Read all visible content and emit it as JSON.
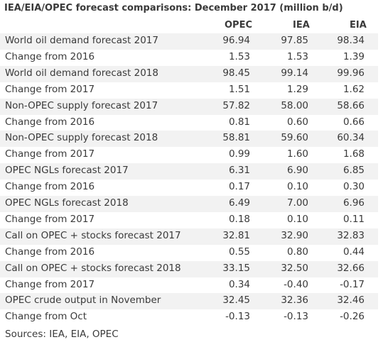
{
  "title": "IEA/EIA/OPEC forecast comparisons: December 2017 (million b/d)",
  "columns": [
    "OPEC",
    "IEA",
    "EIA"
  ],
  "rows": [
    {
      "label": "World oil demand forecast 2017",
      "values": [
        "96.94",
        "97.85",
        "98.34"
      ]
    },
    {
      "label": "Change from 2016",
      "values": [
        "1.53",
        "1.53",
        "1.39"
      ]
    },
    {
      "label": "World oil demand forecast 2018",
      "values": [
        "98.45",
        "99.14",
        "99.96"
      ]
    },
    {
      "label": "Change from 2017",
      "values": [
        "1.51",
        "1.29",
        "1.62"
      ]
    },
    {
      "label": "Non-OPEC supply forecast 2017",
      "values": [
        "57.82",
        "58.00",
        "58.66"
      ]
    },
    {
      "label": "Change from 2016",
      "values": [
        "0.81",
        "0.60",
        "0.66"
      ]
    },
    {
      "label": "Non-OPEC supply forecast 2018",
      "values": [
        "58.81",
        "59.60",
        "60.34"
      ]
    },
    {
      "label": "Change from 2017",
      "values": [
        "0.99",
        "1.60",
        "1.68"
      ]
    },
    {
      "label": "OPEC NGLs forecast 2017",
      "values": [
        "6.31",
        "6.90",
        "6.85"
      ]
    },
    {
      "label": "Change from 2016",
      "values": [
        "0.17",
        "0.10",
        "0.30"
      ]
    },
    {
      "label": "OPEC NGLs forecast 2018",
      "values": [
        "6.49",
        "7.00",
        "6.96"
      ]
    },
    {
      "label": "Change from 2017",
      "values": [
        "0.18",
        "0.10",
        "0.11"
      ]
    },
    {
      "label": "Call on OPEC + stocks forecast 2017",
      "values": [
        "32.81",
        "32.90",
        "32.83"
      ]
    },
    {
      "label": "Change from 2016",
      "values": [
        "0.55",
        "0.80",
        "0.44"
      ]
    },
    {
      "label": "Call on OPEC + stocks forecast 2018",
      "values": [
        "33.15",
        "32.50",
        "32.66"
      ]
    },
    {
      "label": "Change from 2017",
      "values": [
        "0.34",
        "-0.40",
        "-0.17"
      ]
    },
    {
      "label": "OPEC crude output in November",
      "values": [
        "32.45",
        "32.36",
        "32.46"
      ]
    },
    {
      "label": "Change from Oct",
      "values": [
        "-0.13",
        "-0.13",
        "-0.26"
      ]
    }
  ],
  "sources": "Sources: IEA, EIA, OPEC",
  "colors": {
    "shaded_row": "#f2f2f2",
    "text": "#3a3a3a"
  }
}
